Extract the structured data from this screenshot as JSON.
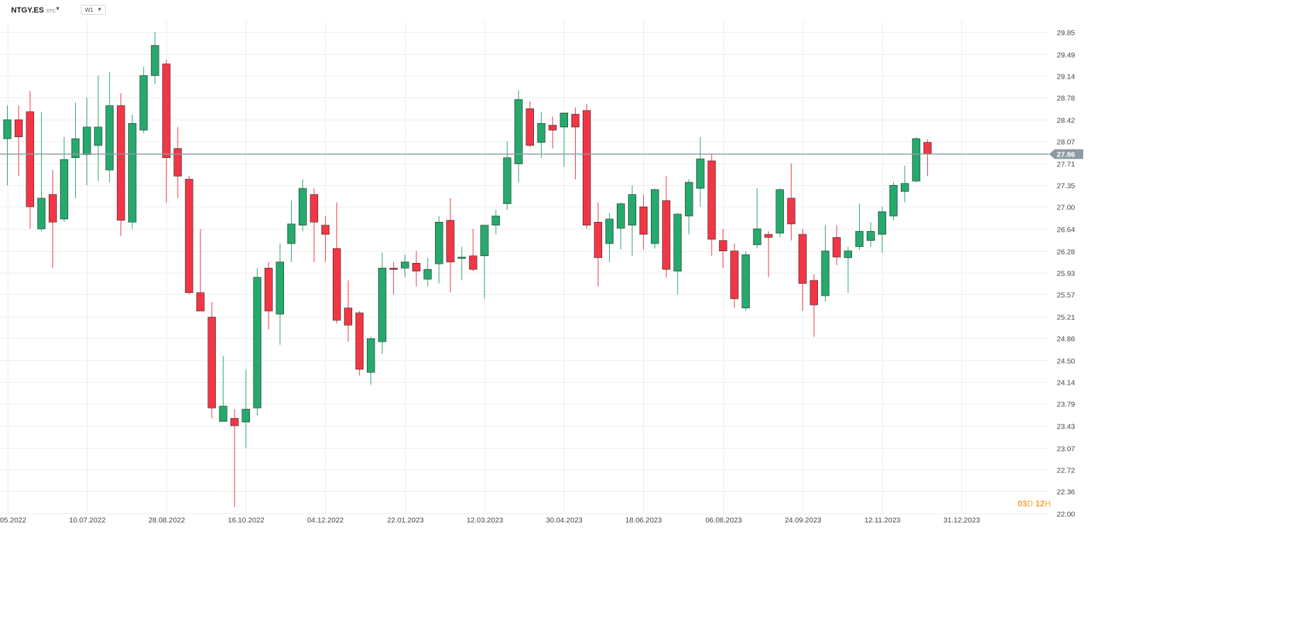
{
  "header": {
    "symbol": "NTGY.ES",
    "symbol_suffix": "STC",
    "interval": "W1"
  },
  "countdown": {
    "days": "03",
    "days_unit": "D",
    "hours": "12",
    "hours_unit": "H"
  },
  "colors": {
    "up": "#26a96c",
    "down": "#f23645",
    "grid": "#eeeeee",
    "price_line": "#8c9ba3",
    "price_badge": "#8c9ba3"
  },
  "chart_data": {
    "type": "candlestick",
    "timeframe": "W1",
    "current_price": 27.86,
    "current_price_label": "27.86",
    "ylim": [
      22.0,
      30.02
    ],
    "y_ticks": [
      "29.85",
      "29.49",
      "29.14",
      "28.78",
      "28.42",
      "28.07",
      "27.71",
      "27.35",
      "27.00",
      "26.64",
      "26.28",
      "25.93",
      "25.57",
      "25.21",
      "24.86",
      "24.50",
      "24.14",
      "23.79",
      "23.43",
      "23.07",
      "22.72",
      "22.36",
      "22.00"
    ],
    "x_ticks": [
      {
        "label": "22.05.2022",
        "index": 0
      },
      {
        "label": "10.07.2022",
        "index": 7
      },
      {
        "label": "28.08.2022",
        "index": 14
      },
      {
        "label": "16.10.2022",
        "index": 21
      },
      {
        "label": "04.12.2022",
        "index": 28
      },
      {
        "label": "22.01.2023",
        "index": 35
      },
      {
        "label": "12.03.2023",
        "index": 42
      },
      {
        "label": "30.04.2023",
        "index": 49
      },
      {
        "label": "18.06.2023",
        "index": 56
      },
      {
        "label": "06.08.2023",
        "index": 63
      },
      {
        "label": "24.09.2023",
        "index": 70
      },
      {
        "label": "12.11.2023",
        "index": 77
      },
      {
        "label": "31.12.2023",
        "index": 84
      }
    ],
    "candles": [
      {
        "o": 28.11,
        "h": 28.65,
        "l": 27.35,
        "c": 28.42
      },
      {
        "o": 28.42,
        "h": 28.65,
        "l": 27.5,
        "c": 28.14
      },
      {
        "o": 28.55,
        "h": 28.89,
        "l": 26.64,
        "c": 27.0
      },
      {
        "o": 26.64,
        "h": 28.55,
        "l": 26.6,
        "c": 27.14
      },
      {
        "o": 27.2,
        "h": 27.6,
        "l": 26.0,
        "c": 26.75
      },
      {
        "o": 26.8,
        "h": 28.14,
        "l": 26.75,
        "c": 27.77
      },
      {
        "o": 27.8,
        "h": 28.7,
        "l": 27.14,
        "c": 28.11
      },
      {
        "o": 27.85,
        "h": 28.78,
        "l": 27.35,
        "c": 28.3
      },
      {
        "o": 28.0,
        "h": 29.14,
        "l": 27.42,
        "c": 28.3
      },
      {
        "o": 27.6,
        "h": 29.2,
        "l": 27.4,
        "c": 28.65
      },
      {
        "o": 28.65,
        "h": 28.85,
        "l": 26.52,
        "c": 26.78
      },
      {
        "o": 26.75,
        "h": 28.5,
        "l": 26.64,
        "c": 28.36
      },
      {
        "o": 28.25,
        "h": 29.28,
        "l": 28.2,
        "c": 29.14
      },
      {
        "o": 29.14,
        "h": 29.85,
        "l": 29.0,
        "c": 29.63
      },
      {
        "o": 29.33,
        "h": 29.4,
        "l": 27.07,
        "c": 27.8
      },
      {
        "o": 27.95,
        "h": 28.3,
        "l": 27.14,
        "c": 27.5
      },
      {
        "o": 27.45,
        "h": 27.5,
        "l": 25.57,
        "c": 25.6
      },
      {
        "o": 25.6,
        "h": 26.64,
        "l": 25.3,
        "c": 25.3
      },
      {
        "o": 25.2,
        "h": 25.45,
        "l": 23.55,
        "c": 23.72
      },
      {
        "o": 23.5,
        "h": 24.57,
        "l": 23.5,
        "c": 23.75
      },
      {
        "o": 23.55,
        "h": 23.7,
        "l": 22.1,
        "c": 23.43
      },
      {
        "o": 23.49,
        "h": 24.35,
        "l": 23.07,
        "c": 23.7
      },
      {
        "o": 23.72,
        "h": 26.0,
        "l": 23.6,
        "c": 25.85
      },
      {
        "o": 26.0,
        "h": 26.1,
        "l": 25.0,
        "c": 25.3
      },
      {
        "o": 25.25,
        "h": 26.4,
        "l": 24.75,
        "c": 26.1
      },
      {
        "o": 26.4,
        "h": 27.1,
        "l": 26.1,
        "c": 26.72
      },
      {
        "o": 26.7,
        "h": 27.45,
        "l": 26.6,
        "c": 27.3
      },
      {
        "o": 27.2,
        "h": 27.3,
        "l": 26.1,
        "c": 26.75
      },
      {
        "o": 26.7,
        "h": 26.85,
        "l": 26.1,
        "c": 26.55
      },
      {
        "o": 26.32,
        "h": 27.07,
        "l": 25.1,
        "c": 25.15
      },
      {
        "o": 25.35,
        "h": 25.8,
        "l": 24.8,
        "c": 25.07
      },
      {
        "o": 25.27,
        "h": 25.3,
        "l": 24.25,
        "c": 24.35
      },
      {
        "o": 24.3,
        "h": 24.88,
        "l": 24.1,
        "c": 24.85
      },
      {
        "o": 24.8,
        "h": 26.25,
        "l": 24.6,
        "c": 26.0
      },
      {
        "o": 26.0,
        "h": 26.1,
        "l": 25.57,
        "c": 25.98
      },
      {
        "o": 26.0,
        "h": 26.22,
        "l": 25.85,
        "c": 26.1
      },
      {
        "o": 26.08,
        "h": 26.28,
        "l": 25.7,
        "c": 25.95
      },
      {
        "o": 25.82,
        "h": 26.17,
        "l": 25.7,
        "c": 25.98
      },
      {
        "o": 26.07,
        "h": 26.85,
        "l": 25.75,
        "c": 26.75
      },
      {
        "o": 26.78,
        "h": 27.14,
        "l": 25.6,
        "c": 26.1
      },
      {
        "o": 26.18,
        "h": 26.35,
        "l": 25.8,
        "c": 26.18
      },
      {
        "o": 26.2,
        "h": 26.64,
        "l": 25.95,
        "c": 25.98
      },
      {
        "o": 26.2,
        "h": 26.7,
        "l": 25.5,
        "c": 26.7
      },
      {
        "o": 26.7,
        "h": 26.95,
        "l": 26.55,
        "c": 26.85
      },
      {
        "o": 27.05,
        "h": 28.07,
        "l": 26.95,
        "c": 27.8
      },
      {
        "o": 27.7,
        "h": 28.9,
        "l": 27.4,
        "c": 28.75
      },
      {
        "o": 28.6,
        "h": 28.72,
        "l": 27.97,
        "c": 28.0
      },
      {
        "o": 28.05,
        "h": 28.55,
        "l": 27.8,
        "c": 28.36
      },
      {
        "o": 28.33,
        "h": 28.47,
        "l": 27.95,
        "c": 28.25
      },
      {
        "o": 28.3,
        "h": 28.5,
        "l": 27.65,
        "c": 28.53
      },
      {
        "o": 28.51,
        "h": 28.62,
        "l": 27.45,
        "c": 28.3
      },
      {
        "o": 28.57,
        "h": 28.68,
        "l": 26.64,
        "c": 26.7
      },
      {
        "o": 26.75,
        "h": 27.07,
        "l": 25.7,
        "c": 26.17
      },
      {
        "o": 26.4,
        "h": 26.9,
        "l": 26.1,
        "c": 26.8
      },
      {
        "o": 26.65,
        "h": 27.07,
        "l": 26.3,
        "c": 27.05
      },
      {
        "o": 26.7,
        "h": 27.35,
        "l": 26.2,
        "c": 27.2
      },
      {
        "o": 27.0,
        "h": 27.2,
        "l": 26.3,
        "c": 26.55
      },
      {
        "o": 26.4,
        "h": 27.3,
        "l": 26.32,
        "c": 27.28
      },
      {
        "o": 27.1,
        "h": 27.5,
        "l": 25.85,
        "c": 25.98
      },
      {
        "o": 25.95,
        "h": 26.9,
        "l": 25.57,
        "c": 26.88
      },
      {
        "o": 26.85,
        "h": 27.45,
        "l": 26.55,
        "c": 27.4
      },
      {
        "o": 27.3,
        "h": 28.14,
        "l": 27.0,
        "c": 27.78
      },
      {
        "o": 27.75,
        "h": 27.86,
        "l": 26.2,
        "c": 26.47
      },
      {
        "o": 26.45,
        "h": 26.64,
        "l": 26.0,
        "c": 26.28
      },
      {
        "o": 26.28,
        "h": 26.4,
        "l": 25.35,
        "c": 25.5
      },
      {
        "o": 25.35,
        "h": 26.28,
        "l": 25.3,
        "c": 26.22
      },
      {
        "o": 26.38,
        "h": 27.3,
        "l": 26.32,
        "c": 26.64
      },
      {
        "o": 26.55,
        "h": 26.6,
        "l": 25.85,
        "c": 26.5
      },
      {
        "o": 26.57,
        "h": 27.3,
        "l": 26.5,
        "c": 27.28
      },
      {
        "o": 27.14,
        "h": 27.71,
        "l": 26.45,
        "c": 26.72
      },
      {
        "o": 26.55,
        "h": 26.64,
        "l": 25.3,
        "c": 25.75
      },
      {
        "o": 25.8,
        "h": 25.9,
        "l": 24.88,
        "c": 25.4
      },
      {
        "o": 25.55,
        "h": 26.7,
        "l": 25.45,
        "c": 26.28
      },
      {
        "o": 26.5,
        "h": 26.7,
        "l": 26.05,
        "c": 26.18
      },
      {
        "o": 26.17,
        "h": 26.35,
        "l": 25.6,
        "c": 26.28
      },
      {
        "o": 26.35,
        "h": 27.05,
        "l": 26.3,
        "c": 26.6
      },
      {
        "o": 26.45,
        "h": 26.75,
        "l": 26.35,
        "c": 26.6
      },
      {
        "o": 26.55,
        "h": 27.0,
        "l": 26.25,
        "c": 26.92
      },
      {
        "o": 26.85,
        "h": 27.4,
        "l": 26.78,
        "c": 27.35
      },
      {
        "o": 27.25,
        "h": 27.67,
        "l": 27.07,
        "c": 27.38
      },
      {
        "o": 27.42,
        "h": 28.14,
        "l": 27.4,
        "c": 28.11
      },
      {
        "o": 28.05,
        "h": 28.1,
        "l": 27.5,
        "c": 27.86
      }
    ]
  }
}
